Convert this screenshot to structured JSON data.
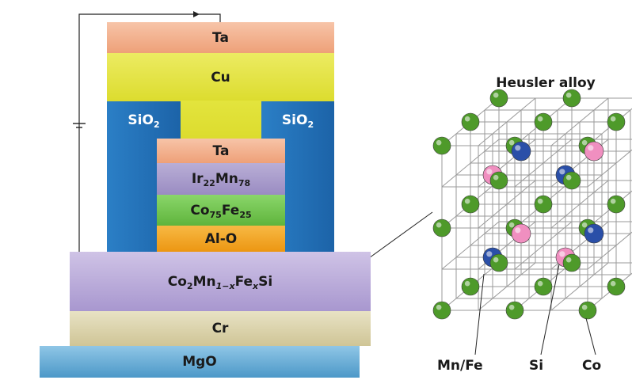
{
  "layers": {
    "ta_top": "Ta",
    "cu": "Cu",
    "sio2_left": {
      "base": "SiO",
      "sub": "2"
    },
    "sio2_right": {
      "base": "SiO",
      "sub": "2"
    },
    "ta_mid": "Ta",
    "irmn": {
      "p1": "Ir",
      "s1": "22",
      "p2": "Mn",
      "s2": "78"
    },
    "cofe": {
      "p1": "Co",
      "s1": "75",
      "p2": "Fe",
      "s2": "25"
    },
    "alo": "Al-O",
    "heusler": {
      "p1": "Co",
      "s1": "2",
      "p2": "Mn",
      "s2": "1−x",
      "p3": "Fe",
      "s3": "x",
      "p4": "Si"
    },
    "cr": "Cr",
    "mgo": "MgO"
  },
  "crystal": {
    "title": "Heusler alloy",
    "legend": {
      "mnfe": "Mn/Fe",
      "si": "Si",
      "co": "Co"
    }
  },
  "colors": {
    "ta": "#f3ae8a",
    "cu": "#e3e43d",
    "sio2": "#1f6fba",
    "irmn": "#a598c8",
    "cofe": "#6cc24a",
    "alo": "#f3a21f",
    "heusler": "#b7a6d4",
    "cr": "#d9d1a8",
    "mgo": "#5aa8d4",
    "co_atom": "#4e9a2a",
    "mnfe_atom": "#f08fc0",
    "si_atom": "#2a4fa8"
  }
}
